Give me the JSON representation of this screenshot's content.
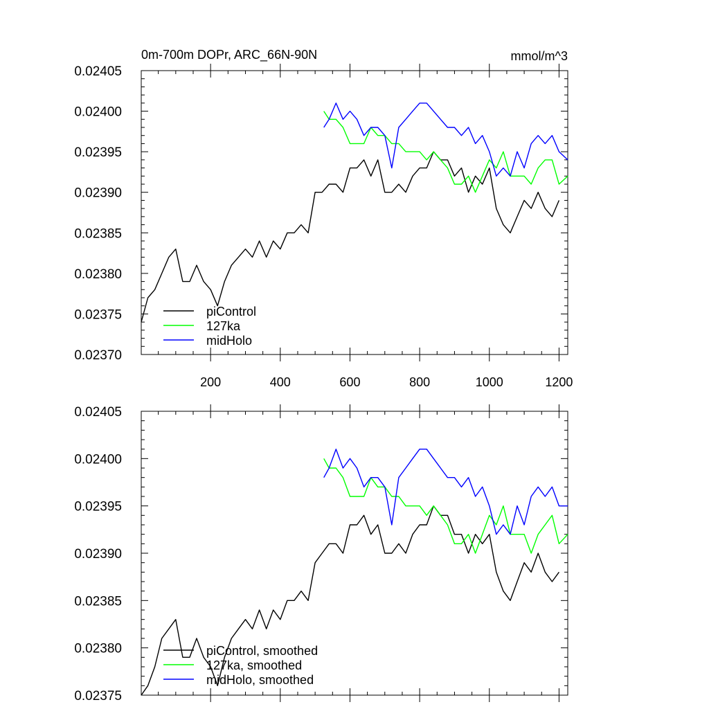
{
  "chart_data": [
    {
      "type": "line",
      "title_left": "0m-700m DOPr, ARC_66N-90N",
      "title_right": "mmol/m^3",
      "xlim": [
        1,
        1225
      ],
      "ylim": [
        0.0237,
        0.02405
      ],
      "x_ticks": [
        200,
        400,
        600,
        800,
        1000,
        1200
      ],
      "x_tick_labels": [
        "200",
        "400",
        "600",
        "800",
        "1000",
        "1200"
      ],
      "y_ticks": [
        0.0237,
        0.02375,
        0.0238,
        0.02385,
        0.0239,
        0.02395,
        0.024,
        0.02405
      ],
      "y_tick_labels": [
        "0.02370",
        "0.02375",
        "0.02380",
        "0.02385",
        "0.02390",
        "0.02395",
        "0.02400",
        "0.02405"
      ],
      "legend_position": "bottom-left",
      "series": [
        {
          "name": "piControl",
          "color": "#000000",
          "x": [
            1,
            20,
            40,
            60,
            80,
            100,
            120,
            140,
            160,
            180,
            200,
            220,
            240,
            260,
            280,
            300,
            320,
            340,
            360,
            380,
            400,
            420,
            440,
            460,
            480,
            500,
            520,
            540,
            560,
            580,
            600,
            620,
            640,
            660,
            680,
            700,
            720,
            740,
            760,
            780,
            800,
            820,
            840,
            860,
            880,
            900,
            920,
            940,
            960,
            980,
            1000,
            1020,
            1040,
            1060,
            1080,
            1100,
            1120,
            1140,
            1160,
            1180,
            1200
          ],
          "y": [
            0.02374,
            0.02377,
            0.02378,
            0.0238,
            0.02382,
            0.02383,
            0.02379,
            0.02379,
            0.02381,
            0.02379,
            0.02378,
            0.02376,
            0.02379,
            0.02381,
            0.02382,
            0.02383,
            0.02382,
            0.02384,
            0.02382,
            0.02384,
            0.02383,
            0.02385,
            0.02385,
            0.02386,
            0.02385,
            0.0239,
            0.0239,
            0.02391,
            0.02391,
            0.0239,
            0.02393,
            0.02393,
            0.02394,
            0.02392,
            0.02394,
            0.0239,
            0.0239,
            0.02391,
            0.0239,
            0.02392,
            0.02393,
            0.02393,
            0.02395,
            0.02394,
            0.02394,
            0.02392,
            0.02393,
            0.0239,
            0.02392,
            0.02391,
            0.02393,
            0.02388,
            0.02386,
            0.02385,
            0.02387,
            0.02389,
            0.02388,
            0.0239,
            0.02388,
            0.02387,
            0.02389
          ]
        },
        {
          "name": "127ka",
          "color": "#00ff00",
          "x": [
            525,
            540,
            560,
            580,
            600,
            620,
            640,
            660,
            680,
            700,
            720,
            740,
            760,
            780,
            800,
            820,
            840,
            860,
            880,
            900,
            920,
            940,
            960,
            980,
            1000,
            1020,
            1040,
            1060,
            1080,
            1100,
            1120,
            1140,
            1160,
            1180,
            1200,
            1225
          ],
          "y": [
            0.024,
            0.02399,
            0.02399,
            0.02398,
            0.02396,
            0.02396,
            0.02396,
            0.02398,
            0.02397,
            0.02397,
            0.02396,
            0.02396,
            0.02395,
            0.02395,
            0.02395,
            0.02394,
            0.02395,
            0.02394,
            0.02393,
            0.02391,
            0.02391,
            0.02392,
            0.0239,
            0.02392,
            0.02394,
            0.02393,
            0.02395,
            0.02392,
            0.02392,
            0.02392,
            0.02391,
            0.02393,
            0.02394,
            0.02394,
            0.02391,
            0.02392
          ]
        },
        {
          "name": "midHolo",
          "color": "#0000ff",
          "x": [
            525,
            540,
            560,
            580,
            600,
            620,
            640,
            660,
            680,
            700,
            720,
            740,
            760,
            780,
            800,
            820,
            840,
            860,
            880,
            900,
            920,
            940,
            960,
            980,
            1000,
            1020,
            1040,
            1060,
            1080,
            1100,
            1120,
            1140,
            1160,
            1180,
            1200,
            1225
          ],
          "y": [
            0.02398,
            0.02399,
            0.02401,
            0.02399,
            0.024,
            0.02399,
            0.02397,
            0.02398,
            0.02398,
            0.02397,
            0.02393,
            0.02398,
            0.02399,
            0.024,
            0.02401,
            0.02401,
            0.024,
            0.02399,
            0.02398,
            0.02398,
            0.02397,
            0.02398,
            0.02396,
            0.02397,
            0.02395,
            0.02392,
            0.02393,
            0.02392,
            0.02395,
            0.02393,
            0.02396,
            0.02397,
            0.02396,
            0.02397,
            0.02395,
            0.02394
          ]
        }
      ]
    },
    {
      "type": "line",
      "xlim": [
        1,
        1225
      ],
      "ylim": [
        0.02375,
        0.02405
      ],
      "x_ticks": [
        200,
        400,
        600,
        800,
        1000,
        1200
      ],
      "x_tick_labels": [],
      "y_ticks": [
        0.02375,
        0.0238,
        0.02385,
        0.0239,
        0.02395,
        0.024,
        0.02405
      ],
      "y_tick_labels": [
        "0.02375",
        "0.02380",
        "0.02385",
        "0.02390",
        "0.02395",
        "0.02400",
        "0.02405"
      ],
      "legend_position": "bottom-left",
      "series": [
        {
          "name": "piControl, smoothed",
          "color": "#000000",
          "x": [
            1,
            20,
            40,
            60,
            80,
            100,
            120,
            140,
            160,
            180,
            200,
            220,
            240,
            260,
            280,
            300,
            320,
            340,
            360,
            380,
            400,
            420,
            440,
            460,
            480,
            500,
            520,
            540,
            560,
            580,
            600,
            620,
            640,
            660,
            680,
            700,
            720,
            740,
            760,
            780,
            800,
            820,
            840,
            860,
            880,
            900,
            920,
            940,
            960,
            980,
            1000,
            1020,
            1040,
            1060,
            1080,
            1100,
            1120,
            1140,
            1160,
            1180,
            1200
          ],
          "y": [
            0.02375,
            0.02376,
            0.02378,
            0.02381,
            0.02382,
            0.02383,
            0.02379,
            0.02379,
            0.02381,
            0.02379,
            0.02378,
            0.02376,
            0.02379,
            0.02381,
            0.02382,
            0.02383,
            0.02382,
            0.02384,
            0.02382,
            0.02384,
            0.02383,
            0.02385,
            0.02385,
            0.02386,
            0.02385,
            0.02389,
            0.0239,
            0.02391,
            0.02391,
            0.0239,
            0.02393,
            0.02393,
            0.02394,
            0.02392,
            0.02393,
            0.0239,
            0.0239,
            0.02391,
            0.0239,
            0.02392,
            0.02393,
            0.02393,
            0.02395,
            0.02394,
            0.02394,
            0.02392,
            0.02392,
            0.0239,
            0.02392,
            0.02391,
            0.02392,
            0.02388,
            0.02386,
            0.02385,
            0.02387,
            0.02389,
            0.02388,
            0.0239,
            0.02388,
            0.02387,
            0.02388
          ]
        },
        {
          "name": "127ka, smoothed",
          "color": "#00ff00",
          "x": [
            525,
            540,
            560,
            580,
            600,
            620,
            640,
            660,
            680,
            700,
            720,
            740,
            760,
            780,
            800,
            820,
            840,
            860,
            880,
            900,
            920,
            940,
            960,
            980,
            1000,
            1020,
            1040,
            1060,
            1080,
            1100,
            1120,
            1140,
            1160,
            1180,
            1200,
            1225
          ],
          "y": [
            0.024,
            0.02399,
            0.02399,
            0.02398,
            0.02396,
            0.02396,
            0.02396,
            0.02398,
            0.02397,
            0.02397,
            0.02396,
            0.02396,
            0.02395,
            0.02395,
            0.02395,
            0.02394,
            0.02395,
            0.02394,
            0.02393,
            0.02391,
            0.02391,
            0.02392,
            0.0239,
            0.02392,
            0.02394,
            0.02393,
            0.02395,
            0.02392,
            0.02392,
            0.02392,
            0.0239,
            0.02392,
            0.02393,
            0.02394,
            0.02391,
            0.02392
          ]
        },
        {
          "name": "midHolo, smoothed",
          "color": "#0000ff",
          "x": [
            525,
            540,
            560,
            580,
            600,
            620,
            640,
            660,
            680,
            700,
            720,
            740,
            760,
            780,
            800,
            820,
            840,
            860,
            880,
            900,
            920,
            940,
            960,
            980,
            1000,
            1020,
            1040,
            1060,
            1080,
            1100,
            1120,
            1140,
            1160,
            1180,
            1200,
            1225
          ],
          "y": [
            0.02398,
            0.02399,
            0.02401,
            0.02399,
            0.024,
            0.02399,
            0.02397,
            0.02398,
            0.02398,
            0.02397,
            0.02393,
            0.02398,
            0.02399,
            0.024,
            0.02401,
            0.02401,
            0.024,
            0.02399,
            0.02398,
            0.02398,
            0.02397,
            0.02398,
            0.02396,
            0.02397,
            0.02395,
            0.02392,
            0.02393,
            0.02392,
            0.02395,
            0.02393,
            0.02396,
            0.02397,
            0.02396,
            0.02397,
            0.02395,
            0.02395
          ]
        }
      ]
    }
  ]
}
